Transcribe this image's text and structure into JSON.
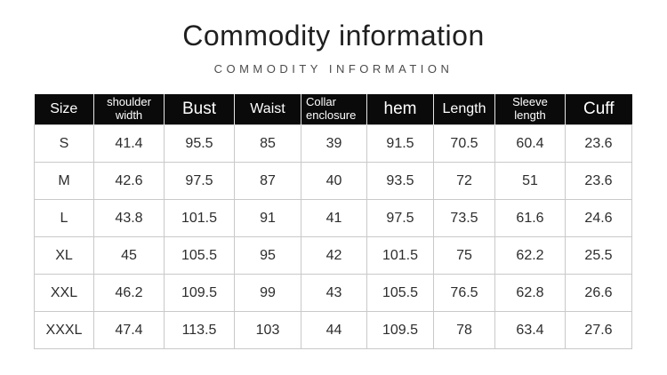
{
  "header": {
    "title": "Commodity information",
    "subtitle": "COMMODITY INFORMATION"
  },
  "table": {
    "columns": [
      {
        "label": "Size"
      },
      {
        "label": "shoulder width"
      },
      {
        "label": "Bust"
      },
      {
        "label": "Waist"
      },
      {
        "label": "Collar enclosure"
      },
      {
        "label": "hem"
      },
      {
        "label": "Length"
      },
      {
        "label": "Sleeve length"
      },
      {
        "label": "Cuff"
      }
    ],
    "rows": [
      {
        "size": "S",
        "values": [
          "41.4",
          "95.5",
          "85",
          "39",
          "91.5",
          "70.5",
          "60.4",
          "23.6"
        ]
      },
      {
        "size": "M",
        "values": [
          "42.6",
          "97.5",
          "87",
          "40",
          "93.5",
          "72",
          "51",
          "23.6"
        ]
      },
      {
        "size": "L",
        "values": [
          "43.8",
          "101.5",
          "91",
          "41",
          "97.5",
          "73.5",
          "61.6",
          "24.6"
        ]
      },
      {
        "size": "XL",
        "values": [
          "45",
          "105.5",
          "95",
          "42",
          "101.5",
          "75",
          "62.2",
          "25.5"
        ]
      },
      {
        "size": "XXL",
        "values": [
          "46.2",
          "109.5",
          "99",
          "43",
          "105.5",
          "76.5",
          "62.8",
          "26.6"
        ]
      },
      {
        "size": "XXXL",
        "values": [
          "47.4",
          "113.5",
          "103",
          "44",
          "109.5",
          "78",
          "63.4",
          "27.6"
        ]
      }
    ]
  },
  "colors": {
    "header_bg": "#0a0a0a",
    "header_text": "#ffffff",
    "body_text": "#2d2d2d",
    "border": "#c9c9c9",
    "title_text": "#1f1f1f",
    "subtitle_text": "#4c4c4c"
  }
}
